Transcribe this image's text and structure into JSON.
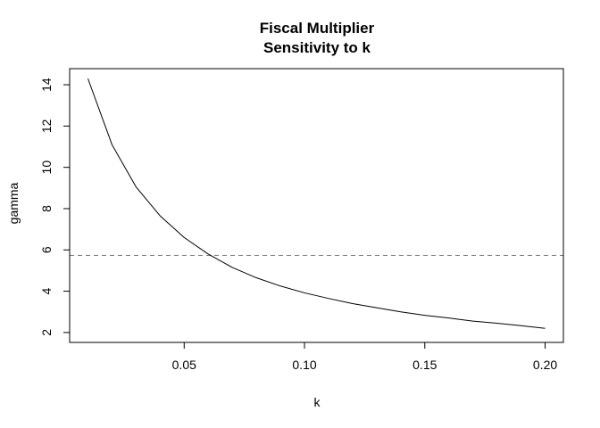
{
  "chart_data": {
    "type": "line",
    "title": [
      "Fiscal Multiplier",
      "Sensitivity to k"
    ],
    "xlabel": "k",
    "ylabel": "gamma",
    "xlim": [
      0.0024,
      0.2076
    ],
    "ylim": [
      1.52,
      14.78
    ],
    "x_ticks": [
      0.05,
      0.1,
      0.15,
      0.2
    ],
    "x_tick_labels": [
      "0.05",
      "0.10",
      "0.15",
      "0.20"
    ],
    "y_ticks": [
      2,
      4,
      6,
      8,
      10,
      12,
      14
    ],
    "y_tick_labels": [
      "2",
      "4",
      "6",
      "8",
      "10",
      "12",
      "14"
    ],
    "grid": false,
    "series": [
      {
        "color": "#000000",
        "style": "solid",
        "x": [
          0.01,
          0.02,
          0.03,
          0.04,
          0.05,
          0.06,
          0.07,
          0.08,
          0.09,
          0.1,
          0.11,
          0.12,
          0.13,
          0.14,
          0.15,
          0.16,
          0.17,
          0.18,
          0.19,
          0.2
        ],
        "y": [
          14.3,
          11.1,
          9.05,
          7.65,
          6.6,
          5.8,
          5.15,
          4.65,
          4.25,
          3.92,
          3.65,
          3.4,
          3.2,
          3.0,
          2.83,
          2.7,
          2.55,
          2.45,
          2.33,
          2.2
        ]
      }
    ],
    "reference_lines": [
      {
        "orientation": "horizontal",
        "y": 5.73,
        "color": "#DF536B",
        "style": "dashed"
      }
    ]
  }
}
